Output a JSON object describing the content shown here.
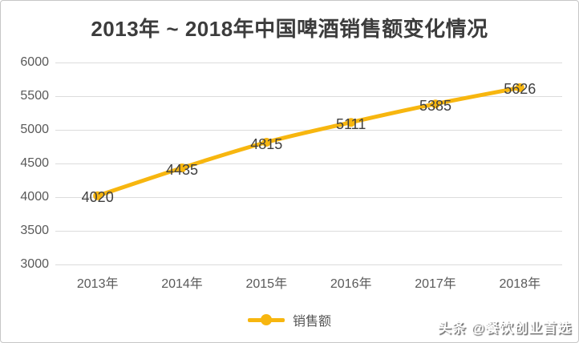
{
  "header": {
    "title": "2013年 ~ 2018年中国啤酒销售额变化情况"
  },
  "chart_data": {
    "type": "line",
    "title": "2013年 ~ 2018年中国啤酒销售额变化情况",
    "categories": [
      "2013年",
      "2014年",
      "2015年",
      "2016年",
      "2017年",
      "2018年"
    ],
    "series": [
      {
        "name": "销售额",
        "values": [
          4020,
          4435,
          4815,
          5111,
          5385,
          5626
        ]
      }
    ],
    "y_ticks": [
      3000,
      3500,
      4000,
      4500,
      5000,
      5500,
      6000
    ],
    "ylim": [
      3000,
      6000
    ],
    "grid": "horizontal-only",
    "legend_position": "bottom-center",
    "data_labels_visible": true,
    "line_color": "#F7B60F",
    "grid_color": "#DCDCDC",
    "data_label_color": "#3F3F3F",
    "axis_text_color": "#595959",
    "title_color": "#3C3C3C"
  },
  "footer": {
    "watermark": "头条 @餐饮创业首选"
  }
}
